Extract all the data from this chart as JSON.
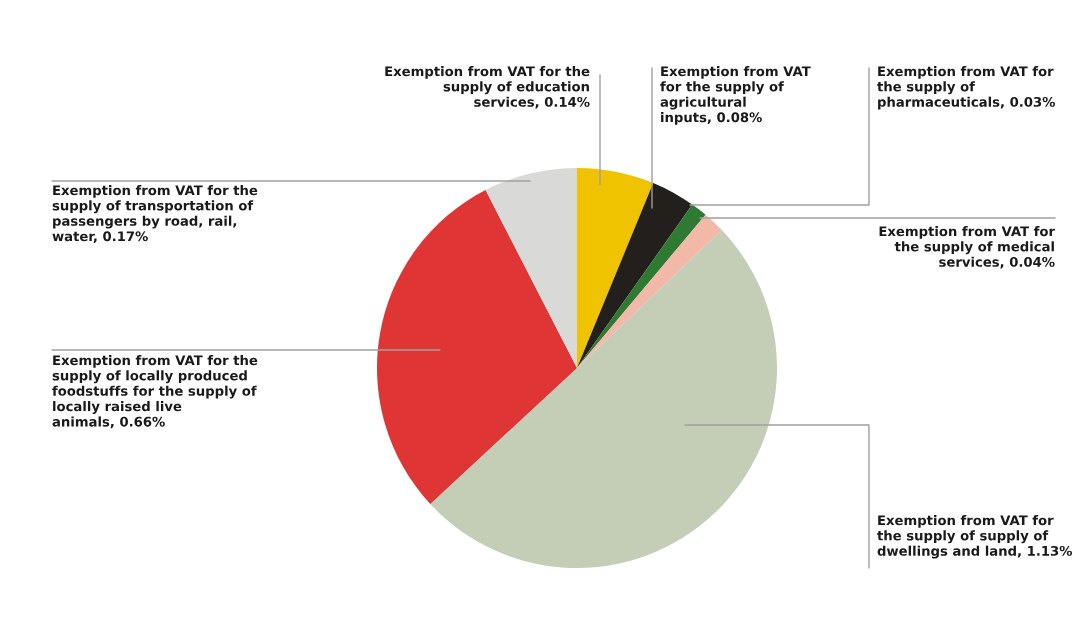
{
  "chart_data": {
    "type": "pie",
    "categories": [
      "Exemption from VAT for the supply of education services",
      "Exemption from VAT for the supply of agricultural inputs",
      "Exemption from VAT for the supply of pharmaceuticals",
      "Exemption from VAT for the supply of medical services",
      "Exemption from VAT for the supply of supply of dwellings and land",
      "Exemption from VAT for the supply of locally produced foodstuffs for the supply of locally raised live animals",
      "Exemption from VAT for the supply of transportation of passengers by road, rail, water"
    ],
    "values": [
      0.14,
      0.08,
      0.03,
      0.04,
      1.13,
      0.66,
      0.17
    ],
    "value_labels": [
      "0.14%",
      "0.08%",
      "0.03%",
      "0.04%",
      "1.13%",
      "0.66%",
      "0.17%"
    ],
    "colors": [
      "#f0c300",
      "#231f1c",
      "#2e7a33",
      "#f2b9a8",
      "#c4cdb6",
      "#e03535",
      "#d9d9d7"
    ]
  }
}
